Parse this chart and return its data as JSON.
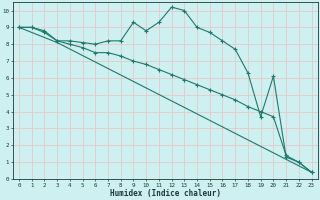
{
  "xlabel": "Humidex (Indice chaleur)",
  "xlim": [
    -0.5,
    23.5
  ],
  "ylim": [
    0,
    10.5
  ],
  "xticks": [
    0,
    1,
    2,
    3,
    4,
    5,
    6,
    7,
    8,
    9,
    10,
    11,
    12,
    13,
    14,
    15,
    16,
    17,
    18,
    19,
    20,
    21,
    22,
    23
  ],
  "yticks": [
    0,
    1,
    2,
    3,
    4,
    5,
    6,
    7,
    8,
    9,
    10
  ],
  "bg_color": "#cff0f0",
  "line_color": "#1a7a6e",
  "grid_color": "#e8c8c8",
  "line1_x": [
    0,
    1,
    2,
    3,
    4,
    5,
    6,
    7,
    8,
    9,
    10,
    11,
    12,
    13,
    14,
    15,
    16,
    17,
    18,
    19,
    20,
    21,
    22,
    23
  ],
  "line1_y": [
    9,
    9,
    8.7,
    8.2,
    8.2,
    8.1,
    8.0,
    8.2,
    8.2,
    9.3,
    8.8,
    9.3,
    10.2,
    10.0,
    9.0,
    8.7,
    8.2,
    7.7,
    6.3,
    3.7,
    6.1,
    1.3,
    1.0,
    0.4
  ],
  "line2_x": [
    0,
    1,
    2,
    3,
    4,
    5,
    6,
    7,
    8,
    9,
    10,
    11,
    12,
    13,
    14,
    15,
    16,
    17,
    18,
    19,
    20,
    21,
    22,
    23
  ],
  "line2_y": [
    9,
    9,
    8.8,
    8.2,
    8.0,
    7.8,
    7.5,
    7.5,
    7.3,
    7.0,
    6.8,
    6.5,
    6.2,
    5.9,
    5.6,
    5.3,
    5.0,
    4.7,
    4.3,
    4.0,
    3.7,
    1.4,
    1.0,
    0.4
  ],
  "line3_x": [
    0,
    3,
    23
  ],
  "line3_y": [
    9,
    8.1,
    0.4
  ]
}
